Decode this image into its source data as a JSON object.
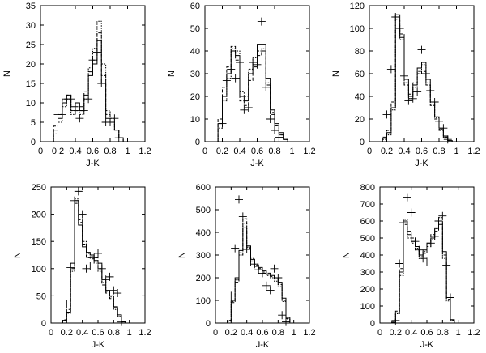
{
  "chart_data": [
    {
      "type": "line",
      "xlabel": "J-K",
      "ylabel": "N",
      "xlim": [
        0,
        1.2
      ],
      "ylim": [
        0,
        35
      ],
      "xticks": [
        "0",
        "0.2",
        "0.4",
        "0.6",
        "0.8",
        "1",
        "1.2"
      ],
      "yticks": [
        "0",
        "5",
        "10",
        "15",
        "20",
        "25",
        "30",
        "35"
      ],
      "bin_edges": [
        0.15,
        0.2,
        0.25,
        0.3,
        0.35,
        0.4,
        0.45,
        0.5,
        0.55,
        0.6,
        0.65,
        0.7,
        0.75,
        0.8,
        0.85,
        0.9,
        0.95,
        1.0
      ],
      "series": [
        {
          "style": "solid",
          "values": [
            3,
            6,
            10,
            12,
            9,
            10,
            8,
            12,
            17,
            20,
            26,
            15,
            6,
            5,
            3,
            1,
            0
          ]
        },
        {
          "style": "dashed",
          "values": [
            4,
            7,
            11,
            12,
            8,
            9,
            9,
            13,
            18,
            21,
            28,
            17,
            7,
            5,
            3,
            1,
            0
          ]
        },
        {
          "style": "dotted",
          "values": [
            2,
            5,
            9,
            11,
            7,
            8,
            7,
            11,
            19,
            24,
            31,
            20,
            8,
            6,
            3,
            1,
            0
          ]
        }
      ],
      "observed": [
        [
          0.2,
          7
        ],
        [
          0.25,
          7
        ],
        [
          0.3,
          11
        ],
        [
          0.35,
          11
        ],
        [
          0.4,
          8
        ],
        [
          0.45,
          6
        ],
        [
          0.5,
          8
        ],
        [
          0.55,
          11
        ],
        [
          0.6,
          21
        ],
        [
          0.65,
          23
        ],
        [
          0.7,
          15
        ],
        [
          0.75,
          5
        ],
        [
          0.8,
          5
        ],
        [
          0.85,
          6
        ],
        [
          0.9,
          1
        ]
      ]
    },
    {
      "type": "line",
      "xlabel": "J-K",
      "ylabel": "N",
      "xlim": [
        0,
        1.2
      ],
      "ylim": [
        0,
        60
      ],
      "xticks": [
        "0",
        "0.2",
        "0.4",
        "0.6",
        "0.8",
        "1",
        "1.2"
      ],
      "yticks": [
        "0",
        "10",
        "20",
        "30",
        "40",
        "50",
        "60"
      ],
      "bin_edges": [
        0.15,
        0.2,
        0.25,
        0.3,
        0.35,
        0.4,
        0.45,
        0.5,
        0.55,
        0.6,
        0.65,
        0.7,
        0.75,
        0.8,
        0.85,
        0.9,
        0.95,
        1.0
      ],
      "series": [
        {
          "style": "solid",
          "values": [
            8,
            20,
            30,
            40,
            38,
            20,
            18,
            30,
            35,
            43,
            43,
            28,
            14,
            8,
            4,
            1,
            0
          ]
        },
        {
          "style": "dashed",
          "values": [
            10,
            24,
            33,
            42,
            36,
            18,
            16,
            27,
            33,
            38,
            40,
            25,
            12,
            7,
            3,
            1,
            0
          ]
        },
        {
          "style": "dotted",
          "values": [
            6,
            18,
            28,
            41,
            40,
            22,
            20,
            32,
            37,
            40,
            41,
            26,
            13,
            7,
            3,
            1,
            0
          ]
        }
      ],
      "observed": [
        [
          0.2,
          8
        ],
        [
          0.25,
          27
        ],
        [
          0.3,
          32
        ],
        [
          0.35,
          28
        ],
        [
          0.4,
          35
        ],
        [
          0.45,
          14
        ],
        [
          0.5,
          15
        ],
        [
          0.55,
          35
        ],
        [
          0.6,
          34
        ],
        [
          0.65,
          53
        ],
        [
          0.7,
          24
        ],
        [
          0.75,
          10
        ],
        [
          0.8,
          5
        ],
        [
          0.85,
          2
        ]
      ]
    },
    {
      "type": "line",
      "xlabel": "J-K",
      "ylabel": "N",
      "xlim": [
        0,
        1.2
      ],
      "ylim": [
        0,
        120
      ],
      "xticks": [
        "0",
        "0.2",
        "0.4",
        "0.6",
        "0.8",
        "1",
        "1.2"
      ],
      "yticks": [
        "0",
        "20",
        "40",
        "60",
        "80",
        "100",
        "120"
      ],
      "bin_edges": [
        0.15,
        0.2,
        0.25,
        0.3,
        0.35,
        0.4,
        0.45,
        0.5,
        0.55,
        0.6,
        0.65,
        0.7,
        0.75,
        0.8,
        0.85,
        0.9,
        0.95,
        1.0
      ],
      "series": [
        {
          "style": "solid",
          "values": [
            3,
            8,
            30,
            112,
            92,
            55,
            40,
            50,
            65,
            70,
            55,
            35,
            22,
            12,
            5,
            1,
            0
          ]
        },
        {
          "style": "dashed",
          "values": [
            4,
            10,
            35,
            100,
            95,
            50,
            42,
            52,
            60,
            62,
            50,
            32,
            20,
            10,
            4,
            1,
            0
          ]
        },
        {
          "style": "dotted",
          "values": [
            2,
            6,
            28,
            108,
            90,
            52,
            38,
            48,
            62,
            68,
            52,
            33,
            21,
            11,
            4,
            1,
            0
          ]
        }
      ],
      "observed": [
        [
          0.2,
          24
        ],
        [
          0.25,
          64
        ],
        [
          0.3,
          110
        ],
        [
          0.35,
          100
        ],
        [
          0.4,
          58
        ],
        [
          0.45,
          36
        ],
        [
          0.5,
          38
        ],
        [
          0.55,
          44
        ],
        [
          0.6,
          81
        ],
        [
          0.65,
          60
        ],
        [
          0.7,
          45
        ],
        [
          0.75,
          35
        ],
        [
          0.8,
          18
        ],
        [
          0.85,
          12
        ],
        [
          0.9,
          2
        ]
      ]
    },
    {
      "type": "line",
      "xlabel": "J-K",
      "ylabel": "N",
      "xlim": [
        0,
        1.2
      ],
      "ylim": [
        0,
        250
      ],
      "xticks": [
        "0",
        "0.2",
        "0.4",
        "0.6",
        "0.8",
        "1",
        "1.2"
      ],
      "yticks": [
        "0",
        "50",
        "100",
        "150",
        "200",
        "250"
      ],
      "bin_edges": [
        0.15,
        0.2,
        0.25,
        0.3,
        0.35,
        0.4,
        0.45,
        0.5,
        0.55,
        0.6,
        0.65,
        0.7,
        0.75,
        0.8,
        0.85,
        0.9,
        0.95,
        1.0
      ],
      "series": [
        {
          "style": "solid",
          "values": [
            5,
            20,
            110,
            225,
            180,
            140,
            130,
            125,
            115,
            110,
            80,
            60,
            50,
            30,
            15,
            3,
            0
          ]
        },
        {
          "style": "dashed",
          "values": [
            6,
            25,
            100,
            220,
            190,
            145,
            120,
            118,
            120,
            100,
            70,
            55,
            45,
            28,
            12,
            3,
            0
          ]
        },
        {
          "style": "dotted",
          "values": [
            4,
            18,
            95,
            228,
            185,
            150,
            128,
            122,
            110,
            95,
            75,
            58,
            48,
            25,
            12,
            2,
            0
          ]
        }
      ],
      "observed": [
        [
          0.2,
          35
        ],
        [
          0.25,
          102
        ],
        [
          0.3,
          225
        ],
        [
          0.35,
          242
        ],
        [
          0.4,
          200
        ],
        [
          0.45,
          100
        ],
        [
          0.5,
          105
        ],
        [
          0.55,
          120
        ],
        [
          0.6,
          128
        ],
        [
          0.65,
          100
        ],
        [
          0.7,
          80
        ],
        [
          0.75,
          85
        ],
        [
          0.8,
          60
        ],
        [
          0.85,
          55
        ],
        [
          0.9,
          2
        ]
      ]
    },
    {
      "type": "line",
      "xlabel": "J-K",
      "ylabel": "N",
      "xlim": [
        0,
        1.2
      ],
      "ylim": [
        0,
        600
      ],
      "xticks": [
        "0",
        "0.2",
        "0.4",
        "0.6",
        "0.8",
        "1",
        "1.2"
      ],
      "yticks": [
        "0",
        "100",
        "200",
        "300",
        "400",
        "500",
        "600"
      ],
      "bin_edges": [
        0.15,
        0.2,
        0.25,
        0.3,
        0.35,
        0.4,
        0.45,
        0.5,
        0.55,
        0.6,
        0.65,
        0.7,
        0.75,
        0.8,
        0.85,
        0.9,
        0.95,
        1.0
      ],
      "series": [
        {
          "style": "solid",
          "values": [
            10,
            100,
            200,
            320,
            420,
            340,
            280,
            250,
            245,
            230,
            215,
            210,
            200,
            180,
            110,
            25,
            0
          ]
        },
        {
          "style": "dashed",
          "values": [
            12,
            90,
            180,
            300,
            460,
            330,
            270,
            255,
            240,
            220,
            220,
            205,
            195,
            170,
            100,
            20,
            0
          ]
        },
        {
          "style": "dotted",
          "values": [
            8,
            95,
            190,
            310,
            440,
            335,
            285,
            260,
            235,
            225,
            210,
            200,
            185,
            160,
            95,
            18,
            0
          ]
        }
      ],
      "observed": [
        [
          0.2,
          120
        ],
        [
          0.25,
          330
        ],
        [
          0.3,
          545
        ],
        [
          0.35,
          470
        ],
        [
          0.4,
          325
        ],
        [
          0.45,
          270
        ],
        [
          0.5,
          260
        ],
        [
          0.55,
          235
        ],
        [
          0.6,
          220
        ],
        [
          0.65,
          165
        ],
        [
          0.7,
          145
        ],
        [
          0.75,
          240
        ],
        [
          0.8,
          200
        ],
        [
          0.85,
          35
        ],
        [
          0.9,
          5
        ]
      ]
    },
    {
      "type": "line",
      "xlabel": "J-K",
      "ylabel": "N",
      "xlim": [
        0,
        1.2
      ],
      "ylim": [
        0,
        800
      ],
      "xticks": [
        "0",
        "0.2",
        "0.4",
        "0.6",
        "0.8",
        "1",
        "1.2"
      ],
      "yticks": [
        "0",
        "100",
        "200",
        "300",
        "400",
        "500",
        "600",
        "700",
        "800"
      ],
      "bin_edges": [
        0.15,
        0.2,
        0.25,
        0.3,
        0.35,
        0.4,
        0.45,
        0.5,
        0.55,
        0.6,
        0.65,
        0.7,
        0.75,
        0.8,
        0.85,
        0.9,
        0.95,
        1.0
      ],
      "series": [
        {
          "style": "solid",
          "values": [
            5,
            60,
            300,
            600,
            520,
            480,
            450,
            400,
            430,
            470,
            500,
            560,
            580,
            420,
            150,
            20,
            0
          ]
        },
        {
          "style": "dashed",
          "values": [
            6,
            70,
            320,
            580,
            540,
            500,
            430,
            390,
            410,
            450,
            520,
            540,
            600,
            400,
            140,
            18,
            0
          ]
        },
        {
          "style": "dotted",
          "values": [
            4,
            55,
            280,
            610,
            500,
            470,
            440,
            380,
            420,
            460,
            490,
            555,
            620,
            380,
            130,
            15,
            0
          ]
        }
      ],
      "observed": [
        [
          0.2,
          15
        ],
        [
          0.25,
          350
        ],
        [
          0.3,
          590
        ],
        [
          0.35,
          740
        ],
        [
          0.4,
          650
        ],
        [
          0.45,
          480
        ],
        [
          0.5,
          430
        ],
        [
          0.55,
          380
        ],
        [
          0.6,
          360
        ],
        [
          0.65,
          470
        ],
        [
          0.7,
          510
        ],
        [
          0.75,
          600
        ],
        [
          0.8,
          630
        ],
        [
          0.85,
          340
        ],
        [
          0.9,
          150
        ]
      ]
    }
  ]
}
